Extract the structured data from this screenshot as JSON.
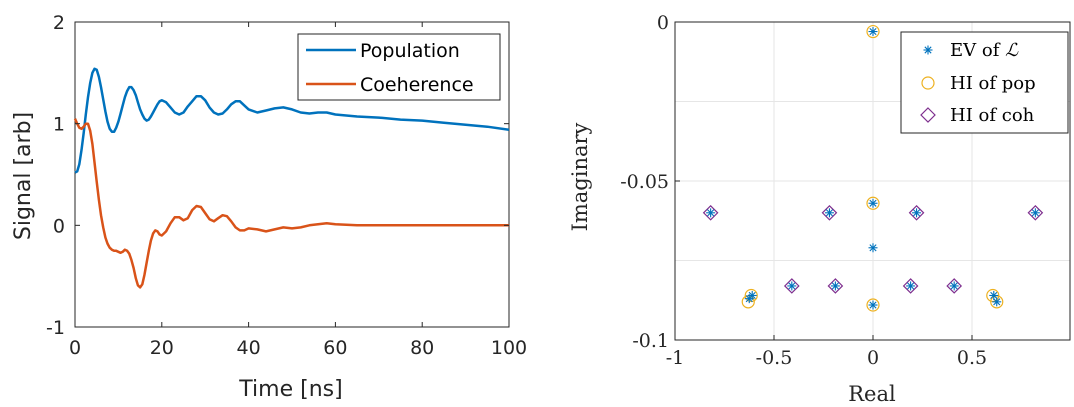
{
  "chart_data": [
    {
      "type": "line",
      "title": "",
      "xlabel": "Time [ns]",
      "ylabel": "Signal [arb]",
      "xlim": [
        0,
        100
      ],
      "ylim": [
        -1,
        2
      ],
      "xticks": [
        "0",
        "20",
        "40",
        "60",
        "80",
        "100"
      ],
      "yticks": [
        "-1",
        "0",
        "1",
        "2"
      ],
      "grid": false,
      "legend_position": "top-right",
      "series": [
        {
          "name": "Population",
          "color": "#0072BD",
          "x": [
            0,
            0.5,
            1,
            1.5,
            2,
            2.5,
            3,
            3.5,
            4,
            4.5,
            5,
            5.5,
            6,
            6.5,
            7,
            7.5,
            8,
            8.5,
            9,
            9.5,
            10,
            10.5,
            11,
            11.5,
            12,
            12.5,
            13,
            13.5,
            14,
            14.5,
            15,
            15.5,
            16,
            16.5,
            17,
            17.5,
            18,
            18.5,
            19,
            19.5,
            20,
            21,
            22,
            23,
            24,
            25,
            26,
            27,
            28,
            29,
            30,
            31,
            32,
            33,
            34,
            35,
            36,
            37,
            38,
            39,
            40,
            42,
            44,
            46,
            48,
            50,
            52,
            54,
            56,
            58,
            60,
            65,
            70,
            75,
            80,
            85,
            90,
            95,
            100
          ],
          "y": [
            0.52,
            0.53,
            0.6,
            0.74,
            0.91,
            1.09,
            1.26,
            1.4,
            1.5,
            1.54,
            1.53,
            1.46,
            1.36,
            1.24,
            1.12,
            1.02,
            0.95,
            0.92,
            0.92,
            0.96,
            1.02,
            1.1,
            1.18,
            1.26,
            1.32,
            1.36,
            1.36,
            1.33,
            1.28,
            1.21,
            1.14,
            1.09,
            1.05,
            1.03,
            1.04,
            1.07,
            1.11,
            1.15,
            1.19,
            1.22,
            1.23,
            1.21,
            1.16,
            1.11,
            1.09,
            1.11,
            1.17,
            1.22,
            1.27,
            1.27,
            1.23,
            1.16,
            1.11,
            1.09,
            1.1,
            1.14,
            1.19,
            1.22,
            1.22,
            1.18,
            1.14,
            1.11,
            1.13,
            1.15,
            1.16,
            1.14,
            1.11,
            1.1,
            1.11,
            1.11,
            1.09,
            1.07,
            1.06,
            1.04,
            1.03,
            1.01,
            0.99,
            0.97,
            0.94
          ]
        },
        {
          "name": "Coeherence",
          "color": "#D95319",
          "x": [
            0,
            0.5,
            1,
            1.5,
            2,
            2.5,
            3,
            3.5,
            4,
            4.5,
            5,
            5.5,
            6,
            6.5,
            7,
            7.5,
            8,
            8.5,
            9,
            9.5,
            10,
            10.5,
            11,
            11.5,
            12,
            12.5,
            13,
            13.5,
            14,
            14.5,
            15,
            15.5,
            16,
            16.5,
            17,
            17.5,
            18,
            18.5,
            19,
            19.5,
            20,
            21,
            22,
            23,
            24,
            25,
            26,
            27,
            28,
            29,
            30,
            31,
            32,
            33,
            34,
            35,
            36,
            37,
            38,
            39,
            40,
            42,
            44,
            46,
            48,
            50,
            52,
            54,
            56,
            58,
            60,
            65,
            70,
            75,
            80,
            85,
            90,
            95,
            100
          ],
          "y": [
            1.05,
            1.0,
            0.96,
            0.95,
            0.97,
            1.0,
            1.0,
            0.93,
            0.8,
            0.62,
            0.43,
            0.25,
            0.1,
            -0.02,
            -0.12,
            -0.18,
            -0.22,
            -0.24,
            -0.25,
            -0.25,
            -0.26,
            -0.27,
            -0.26,
            -0.24,
            -0.25,
            -0.28,
            -0.34,
            -0.42,
            -0.52,
            -0.59,
            -0.61,
            -0.58,
            -0.49,
            -0.37,
            -0.25,
            -0.15,
            -0.08,
            -0.05,
            -0.06,
            -0.09,
            -0.1,
            -0.06,
            0.02,
            0.08,
            0.08,
            0.05,
            0.07,
            0.15,
            0.19,
            0.18,
            0.12,
            0.06,
            0.04,
            0.07,
            0.1,
            0.09,
            0.04,
            -0.02,
            -0.05,
            -0.05,
            -0.03,
            -0.04,
            -0.06,
            -0.04,
            -0.02,
            -0.03,
            -0.02,
            0.0,
            0.01,
            0.02,
            0.01,
            0.0,
            0.0,
            0.0,
            0.0,
            0.0,
            0.0,
            0.0,
            0.0
          ]
        }
      ]
    },
    {
      "type": "scatter",
      "title": "",
      "xlabel": "Real",
      "ylabel": "Imaginary",
      "xlim": [
        -1,
        1
      ],
      "ylim": [
        -0.1,
        0
      ],
      "xticks": [
        "-1",
        "-0.5",
        "0",
        "0.5"
      ],
      "yticks": [
        "0",
        "-0.05",
        "-0.1"
      ],
      "grid": true,
      "legend_position": "top-right",
      "series": [
        {
          "name": "EV of ",
          "name_symbol": "ℒ",
          "marker": "asterisk",
          "color": "#0072BD",
          "points": [
            [
              0,
              -0.003
            ],
            [
              0,
              -0.057
            ],
            [
              0,
              -0.071
            ],
            [
              0,
              -0.089
            ],
            [
              -0.82,
              -0.06
            ],
            [
              -0.22,
              -0.06
            ],
            [
              0.22,
              -0.06
            ],
            [
              0.82,
              -0.06
            ],
            [
              -0.41,
              -0.083
            ],
            [
              -0.19,
              -0.083
            ],
            [
              0.19,
              -0.083
            ],
            [
              0.41,
              -0.083
            ],
            [
              -0.625,
              -0.087
            ],
            [
              -0.61,
              -0.086
            ],
            [
              0.61,
              -0.086
            ],
            [
              0.625,
              -0.088
            ]
          ]
        },
        {
          "name": "HI of pop",
          "marker": "circle",
          "color": "#EDB120",
          "points": [
            [
              0,
              -0.003
            ],
            [
              0,
              -0.057
            ],
            [
              0,
              -0.089
            ],
            [
              -0.63,
              -0.088
            ],
            [
              -0.615,
              -0.086
            ],
            [
              0.605,
              -0.086
            ],
            [
              0.625,
              -0.088
            ]
          ]
        },
        {
          "name": "HI of coh",
          "marker": "diamond",
          "color": "#7E2F8E",
          "points": [
            [
              -0.82,
              -0.06
            ],
            [
              -0.22,
              -0.06
            ],
            [
              0.22,
              -0.06
            ],
            [
              0.82,
              -0.06
            ],
            [
              -0.41,
              -0.083
            ],
            [
              -0.19,
              -0.083
            ],
            [
              0.19,
              -0.083
            ],
            [
              0.41,
              -0.083
            ]
          ]
        }
      ]
    }
  ]
}
